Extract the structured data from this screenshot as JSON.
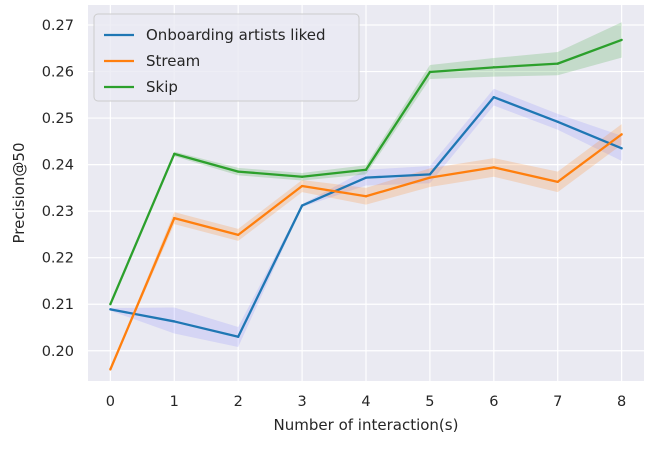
{
  "chart_data": {
    "type": "line",
    "xlabel": "Number of interaction(s)",
    "ylabel": "Precision@50",
    "x": [
      0,
      1,
      2,
      3,
      4,
      5,
      6,
      7,
      8
    ],
    "xlim": [
      -0.35,
      8.35
    ],
    "ylim": [
      0.1935,
      0.2743
    ],
    "xticks": [
      "0",
      "1",
      "2",
      "3",
      "4",
      "5",
      "6",
      "7",
      "8"
    ],
    "yticks": [
      "0.20",
      "0.21",
      "0.22",
      "0.23",
      "0.24",
      "0.25",
      "0.26",
      "0.27"
    ],
    "grid": true,
    "legend_position": "top-left",
    "series": [
      {
        "name": "Onboarding artists liked",
        "color": "#1f77b4",
        "band_color": "#8080ff",
        "values": [
          0.2089,
          0.2063,
          0.203,
          0.2312,
          0.2372,
          0.2379,
          0.2545,
          0.2492,
          0.2435
        ],
        "lower": [
          0.2086,
          0.2037,
          0.2008,
          0.2309,
          0.2355,
          0.236,
          0.2527,
          0.2475,
          0.2408
        ],
        "upper": [
          0.2092,
          0.2093,
          0.2051,
          0.2315,
          0.2389,
          0.2397,
          0.2563,
          0.2509,
          0.2462
        ]
      },
      {
        "name": "Stream",
        "color": "#ff7f0e",
        "band_color": "#ff7f0e",
        "values": [
          0.196,
          0.2285,
          0.2249,
          0.2354,
          0.2332,
          0.2372,
          0.2394,
          0.2363,
          0.2465
        ],
        "lower": [
          0.1958,
          0.2272,
          0.2236,
          0.2341,
          0.2314,
          0.2352,
          0.2374,
          0.2341,
          0.2443
        ],
        "upper": [
          0.1962,
          0.2298,
          0.2262,
          0.2367,
          0.235,
          0.2392,
          0.2414,
          0.2385,
          0.2487
        ]
      },
      {
        "name": "Skip",
        "color": "#2ca02c",
        "band_color": "#2ca02c",
        "values": [
          0.21,
          0.2423,
          0.2385,
          0.2374,
          0.2389,
          0.2599,
          0.2609,
          0.2617,
          0.2668
        ],
        "lower": [
          0.2098,
          0.2418,
          0.2377,
          0.2366,
          0.2379,
          0.2584,
          0.2589,
          0.2592,
          0.263
        ],
        "upper": [
          0.2102,
          0.2428,
          0.2393,
          0.2382,
          0.2399,
          0.2614,
          0.2629,
          0.2642,
          0.2706
        ]
      }
    ]
  }
}
